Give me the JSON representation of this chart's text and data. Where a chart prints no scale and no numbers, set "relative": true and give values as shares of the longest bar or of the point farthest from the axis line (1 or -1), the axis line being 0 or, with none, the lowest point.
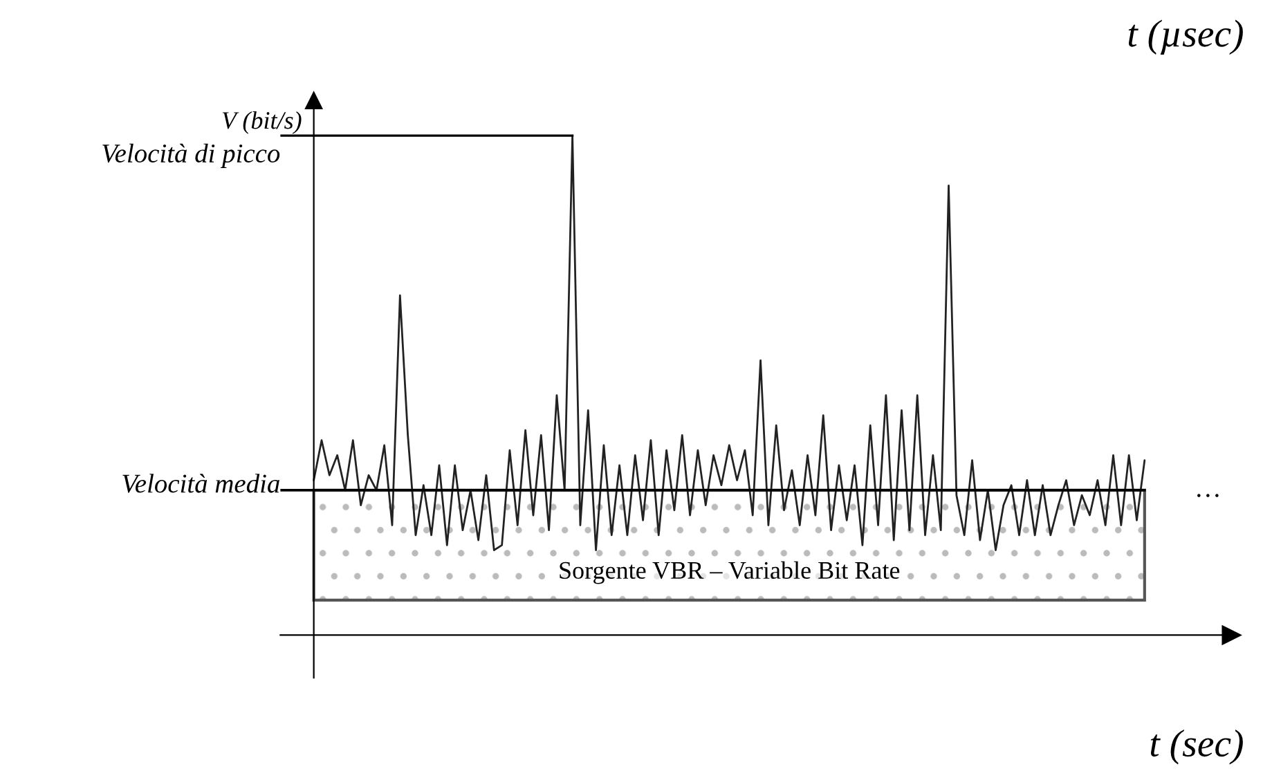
{
  "chart_data": {
    "type": "line",
    "relative": true,
    "ylabel": "V (bit/s)",
    "xlabel": "t (sec)",
    "annotations": [
      "t (µsec)",
      "…"
    ],
    "categories": [
      null,
      null,
      null,
      null,
      null,
      null,
      null,
      null,
      null,
      null,
      null,
      null,
      null,
      null,
      null,
      null,
      null,
      null,
      null,
      null,
      null,
      null,
      null,
      null,
      null,
      null,
      null,
      null,
      null,
      null,
      null,
      null,
      null,
      null,
      null,
      null,
      null,
      null,
      null,
      null,
      null,
      null,
      null,
      null,
      null,
      null,
      null,
      null,
      null,
      null,
      null,
      null,
      null,
      null,
      null,
      null,
      null,
      null,
      null,
      null,
      null,
      null,
      null,
      null,
      null,
      null,
      null,
      null,
      null,
      null,
      null,
      null,
      null,
      null,
      null,
      null,
      null,
      null,
      null,
      null,
      null,
      null,
      null,
      null,
      null,
      null,
      null,
      null,
      null,
      null,
      null,
      null,
      null,
      null,
      null,
      null,
      null,
      null,
      null,
      null,
      null,
      null,
      null,
      null,
      null,
      null,
      null
    ],
    "series": [
      {
        "color": "#222222",
        "values": [
          0.31,
          0.39,
          0.32,
          0.36,
          0.29,
          0.39,
          0.26,
          0.32,
          0.29,
          0.38,
          0.22,
          0.68,
          0.4,
          0.2,
          0.3,
          0.2,
          0.34,
          0.18,
          0.34,
          0.21,
          0.29,
          0.19,
          0.32,
          0.17,
          0.18,
          0.37,
          0.22,
          0.41,
          0.24,
          0.4,
          0.21,
          0.48,
          0.29,
          1,
          0.22,
          0.45,
          0.17,
          0.38,
          0.2,
          0.34,
          0.2,
          0.36,
          0.23,
          0.39,
          0.2,
          0.37,
          0.25,
          0.4,
          0.24,
          0.37,
          0.26,
          0.36,
          0.3,
          0.38,
          0.31,
          0.37,
          0.24,
          0.55,
          0.22,
          0.42,
          0.25,
          0.33,
          0.22,
          0.36,
          0.24,
          0.44,
          0.21,
          0.34,
          0.23,
          0.34,
          0.18,
          0.42,
          0.22,
          0.48,
          0.19,
          0.45,
          0.21,
          0.48,
          0.2,
          0.36,
          0.21,
          0.9,
          0.28,
          0.2,
          0.35,
          0.19,
          0.29,
          0.17,
          0.26,
          0.3,
          0.2,
          0.31,
          0.2,
          0.3,
          0.2,
          0.26,
          0.31,
          0.22,
          0.28,
          0.24,
          0.31,
          0.22,
          0.36,
          0.22,
          0.36,
          0.23,
          0.35
        ]
      }
    ],
    "ref_lines": [
      {
        "axis": "y",
        "value": 1,
        "label": "Velocità di picco",
        "color": "#000000"
      },
      {
        "axis": "y",
        "value": 0.29,
        "label": "Velocità media",
        "color": "#000000"
      }
    ],
    "bands": [
      {
        "axis": "y",
        "from": 0.07,
        "to": 0.29,
        "label": "Sorgente VBR – Variable Bit Rate",
        "color": "#555555"
      }
    ],
    "legend": false,
    "marker": "none",
    "line_style": "solid"
  }
}
